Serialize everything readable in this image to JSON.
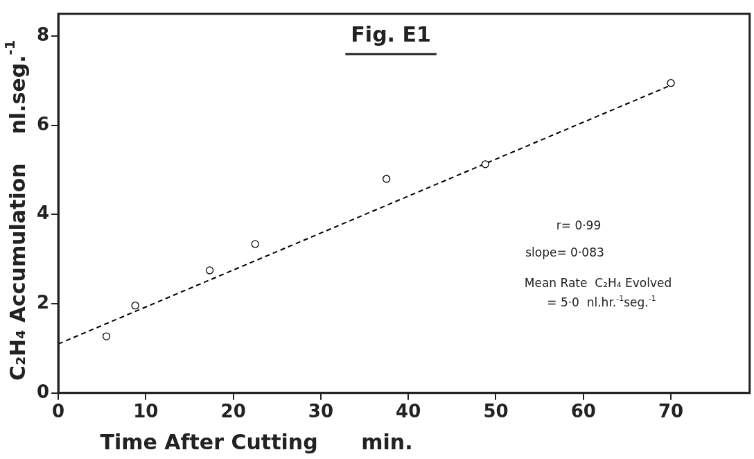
{
  "chart_data": {
    "type": "scatter",
    "title": "Fig. E1",
    "xlabel": "Time After Cutting      min.",
    "ylabel": "C₂H₄ Accumulation    nl.seg.$^{-1}$",
    "xlim": [
      0,
      79
    ],
    "xticks": [
      0,
      10,
      20,
      30,
      40,
      50,
      60,
      70
    ],
    "ylim": [
      0,
      8.5
    ],
    "yticks": [
      0,
      2,
      4,
      6,
      8
    ],
    "grid": false,
    "legend": false,
    "marker": "circle",
    "series": [
      {
        "color": "#000000",
        "x": [
          5.5,
          8.8,
          17.3,
          22.5,
          37.5,
          48.8,
          70
        ],
        "values": [
          1.27,
          1.96,
          2.75,
          3.34,
          4.8,
          5.13,
          6.95
        ]
      },
      {
        "type": "line",
        "color": "#000000",
        "line_style": "dashed",
        "marker": "none",
        "x": [
          0,
          70
        ],
        "values": [
          1.1,
          6.9
        ]
      }
    ],
    "annotations": [
      "r= 0·99",
      "slope= 0·083",
      "Mean Rate  C₂H₄ Evolved",
      "= 5·0  nl.hr.$^{-1}$seg.$^{-1}$"
    ]
  }
}
